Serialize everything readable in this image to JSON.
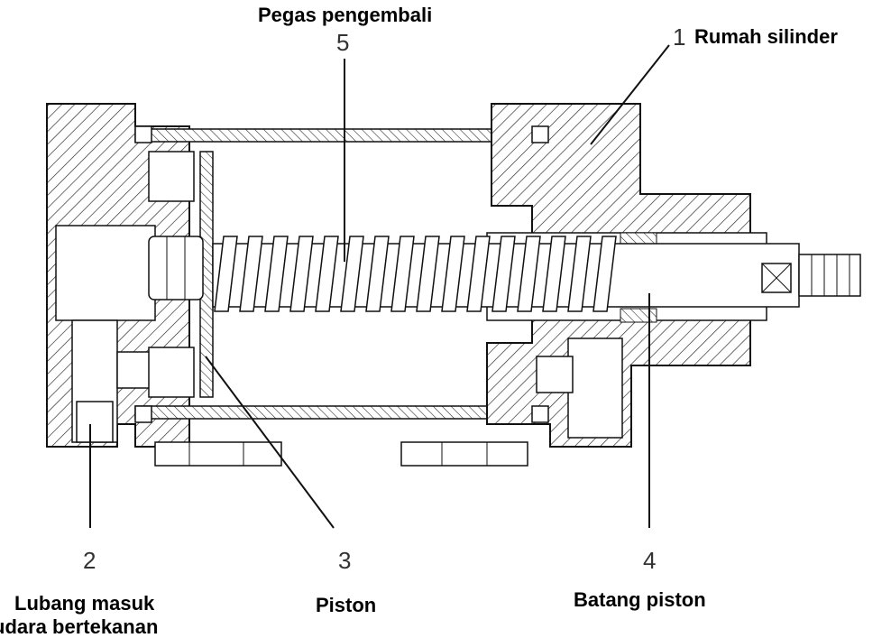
{
  "callouts": [
    {
      "number": "1",
      "label": "Rumah silinder"
    },
    {
      "number": "2",
      "label": "Lubang masuk udara bertekanan",
      "label_line1": "Lubang masuk",
      "label_line2": "udara bertekanan"
    },
    {
      "number": "3",
      "label": "Piston"
    },
    {
      "number": "4",
      "label": "Batang piston"
    },
    {
      "number": "5",
      "label": "Pegas pengembali"
    }
  ]
}
